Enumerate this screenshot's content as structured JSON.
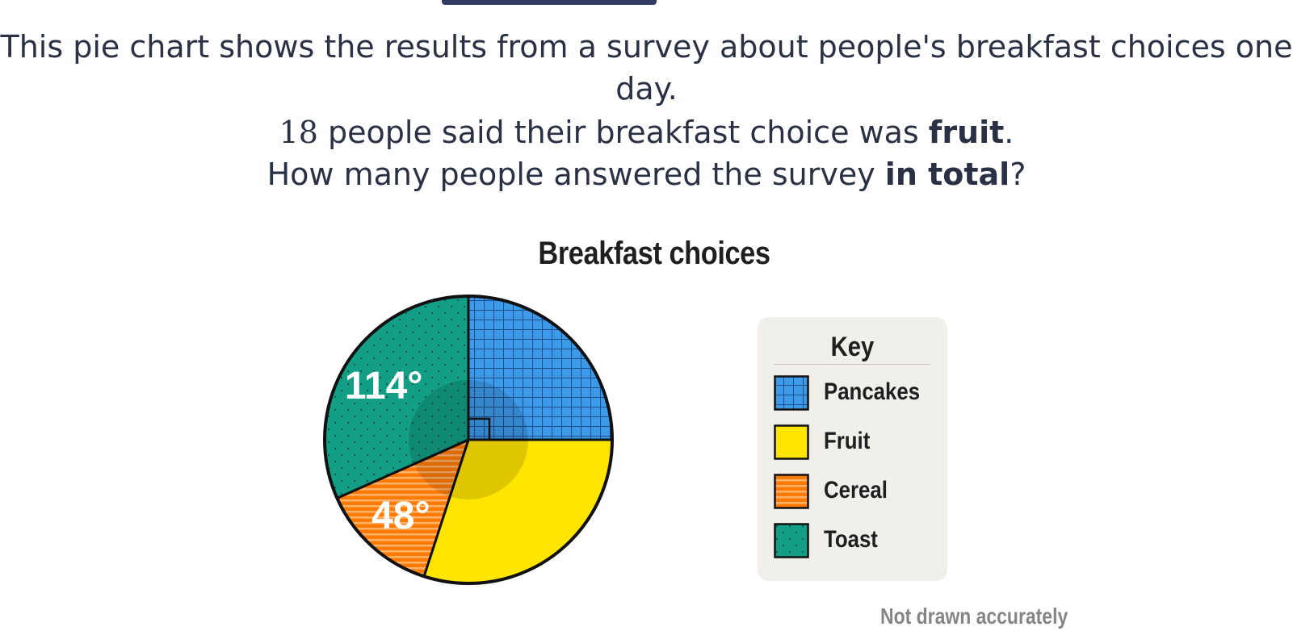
{
  "question": {
    "line1": "This pie chart shows the results from a survey about people's breakfast choices one day.",
    "line2_num": "18",
    "line2_text": " people said their breakfast choice was ",
    "line2_bold": "fruit",
    "line2_end": ".",
    "line3_text": "How many people answered the survey ",
    "line3_bold": "in total",
    "line3_end": "?"
  },
  "chart_data": {
    "type": "pie",
    "title": "Breakfast choices",
    "slices": [
      {
        "name": "Pancakes",
        "degrees": 90,
        "label": "",
        "color": "#3d9ae8",
        "pattern": "grid"
      },
      {
        "name": "Fruit",
        "degrees": 108,
        "label": "",
        "color": "#ffe500",
        "pattern": "none"
      },
      {
        "name": "Cereal",
        "degrees": 48,
        "label": "48°",
        "color": "#ff7a00",
        "pattern": "stripes"
      },
      {
        "name": "Toast",
        "degrees": 114,
        "label": "114°",
        "color": "#139e86",
        "pattern": "dots"
      }
    ],
    "right_angle_marker": "Pancakes",
    "legend_title": "Key",
    "legend_position": "right",
    "footnote": "Not drawn accurately"
  },
  "colors": {
    "pancakes": "#3d9ae8",
    "fruit": "#ffe500",
    "cereal": "#ff7a00",
    "toast": "#139e86",
    "text": "#2b3144",
    "header_bar": "#2f3b63"
  }
}
